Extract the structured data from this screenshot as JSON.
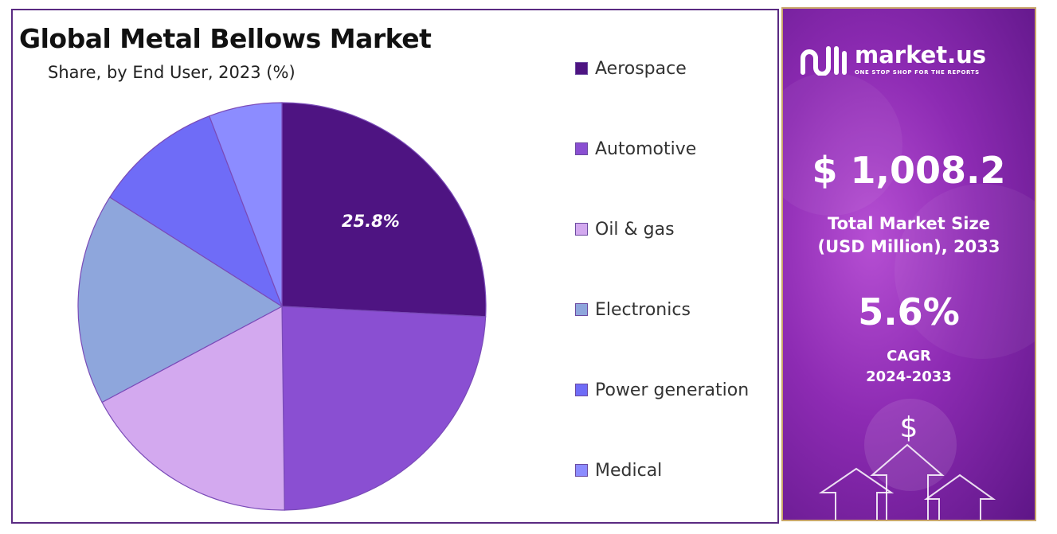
{
  "chart_data": {
    "type": "pie",
    "title": "Global Metal Bellows Market",
    "subtitle": "Share, by End User, 2023 (%)",
    "categories": [
      "Aerospace",
      "Automotive",
      "Oil & gas",
      "Electronics",
      "Power generation",
      "Medical"
    ],
    "values": [
      25.8,
      24.0,
      17.4,
      16.8,
      10.2,
      5.8
    ],
    "colors": [
      "#4e1482",
      "#8a4fd2",
      "#d3a9ef",
      "#8ea6dc",
      "#6f6cf7",
      "#8c8cff"
    ],
    "data_labels": [
      "25.8%",
      "",
      "",
      "",
      "",
      ""
    ],
    "legend_position": "right"
  },
  "side_panel": {
    "brand_name": "market.us",
    "brand_tagline": "ONE STOP SHOP FOR THE REPORTS",
    "market_size": "$ 1,008.2",
    "market_size_label_line1": "Total Market Size",
    "market_size_label_line2": "(USD Million), 2033",
    "cagr_value": "5.6%",
    "cagr_label": "CAGR",
    "cagr_period": "2024-2033",
    "dollar_symbol": "$"
  },
  "icons": {
    "logo": "market-us-logo-icon",
    "deco": "growth-arrows-icon"
  }
}
